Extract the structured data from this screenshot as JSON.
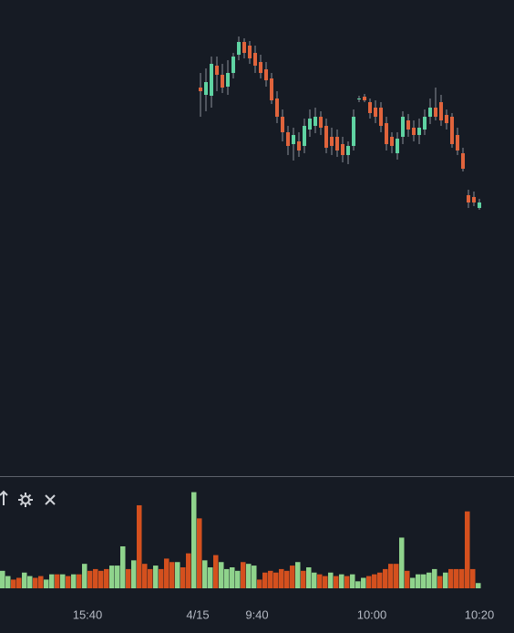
{
  "chart_data": [
    {
      "type": "candlestick",
      "up_color": "#5fd3a2",
      "down_color": "#e0643c",
      "ylim": [
        0,
        522
      ],
      "open": [
        426,
        418,
        417,
        450,
        440,
        427,
        442,
        462,
        476,
        472,
        464,
        454,
        446,
        436,
        414,
        394,
        377,
        364,
        367,
        362,
        380,
        384,
        394,
        384,
        372,
        372,
        364,
        352,
        362,
        414,
        416,
        410,
        404,
        404,
        387,
        372,
        354,
        372,
        390,
        382,
        374,
        380,
        394,
        404,
        410,
        396,
        394,
        374,
        354,
        308,
        306,
        294
      ],
      "high": [
        442,
        447,
        460,
        460,
        452,
        456,
        464,
        482,
        480,
        477,
        472,
        462,
        454,
        442,
        422,
        402,
        384,
        382,
        377,
        392,
        402,
        404,
        400,
        392,
        382,
        380,
        372,
        367,
        402,
        417,
        419,
        414,
        412,
        410,
        394,
        377,
        377,
        400,
        397,
        390,
        392,
        402,
        414,
        426,
        418,
        402,
        398,
        382,
        360,
        314,
        312,
        304
      ],
      "low": [
        394,
        400,
        404,
        422,
        420,
        418,
        436,
        456,
        458,
        452,
        442,
        436,
        427,
        408,
        387,
        367,
        352,
        346,
        350,
        354,
        372,
        376,
        374,
        354,
        352,
        350,
        344,
        342,
        357,
        410,
        410,
        392,
        387,
        377,
        357,
        354,
        347,
        364,
        372,
        367,
        364,
        374,
        386,
        390,
        384,
        380,
        360,
        352,
        334,
        294,
        296,
        292
      ],
      "close": [
        422,
        432,
        452,
        440,
        426,
        442,
        460,
        476,
        464,
        458,
        450,
        442,
        434,
        412,
        394,
        377,
        362,
        374,
        357,
        384,
        392,
        394,
        382,
        360,
        362,
        357,
        352,
        362,
        394,
        414,
        412,
        398,
        394,
        384,
        364,
        362,
        370,
        394,
        380,
        374,
        382,
        394,
        404,
        394,
        390,
        387,
        364,
        357,
        337,
        300,
        300,
        300
      ]
    },
    {
      "type": "bar",
      "ylim": [
        0,
        120
      ],
      "values": [
        20,
        14,
        10,
        12,
        18,
        14,
        12,
        14,
        10,
        16,
        16,
        16,
        14,
        16,
        16,
        28,
        20,
        22,
        20,
        22,
        26,
        26,
        48,
        22,
        32,
        95,
        28,
        22,
        26,
        22,
        34,
        30,
        30,
        24,
        40,
        110,
        80,
        32,
        24,
        38,
        30,
        22,
        24,
        20,
        30,
        28,
        26,
        10,
        18,
        20,
        18,
        22,
        20,
        26,
        30,
        20,
        24,
        18,
        16,
        14,
        18,
        14,
        16,
        14,
        16,
        8,
        12,
        14,
        16,
        18,
        22,
        28,
        28,
        58,
        20,
        12,
        16,
        16,
        18,
        22,
        14,
        18,
        22,
        22,
        22,
        88,
        22,
        6
      ],
      "colors": [
        "#8fd38c",
        "#8fd38c",
        "#d4501e",
        "#d4501e",
        "#8fd38c",
        "#8fd38c",
        "#d4501e",
        "#d4501e",
        "#8fd38c",
        "#8fd38c",
        "#d4501e",
        "#8fd38c",
        "#d4501e",
        "#8fd38c",
        "#d4501e",
        "#8fd38c",
        "#d4501e",
        "#d4501e",
        "#d4501e",
        "#d4501e",
        "#8fd38c",
        "#8fd38c",
        "#8fd38c",
        "#d4501e",
        "#8fd38c",
        "#d4501e",
        "#d4501e",
        "#d4501e",
        "#8fd38c",
        "#d4501e",
        "#d4501e",
        "#d4501e",
        "#8fd38c",
        "#d4501e",
        "#d4501e",
        "#8fd38c",
        "#d4501e",
        "#8fd38c",
        "#8fd38c",
        "#d4501e",
        "#8fd38c",
        "#8fd38c",
        "#8fd38c",
        "#8fd38c",
        "#d4501e",
        "#8fd38c",
        "#8fd38c",
        "#d4501e",
        "#d4501e",
        "#d4501e",
        "#d4501e",
        "#d4501e",
        "#d4501e",
        "#d4501e",
        "#8fd38c",
        "#d4501e",
        "#8fd38c",
        "#8fd38c",
        "#d4501e",
        "#d4501e",
        "#8fd38c",
        "#d4501e",
        "#8fd38c",
        "#d4501e",
        "#8fd38c",
        "#8fd38c",
        "#8fd38c",
        "#d4501e",
        "#d4501e",
        "#d4501e",
        "#d4501e",
        "#d4501e",
        "#d4501e",
        "#8fd38c",
        "#d4501e",
        "#8fd38c",
        "#8fd38c",
        "#8fd38c",
        "#8fd38c",
        "#8fd38c",
        "#d4501e",
        "#8fd38c",
        "#d4501e",
        "#d4501e",
        "#d4501e",
        "#d4501e",
        "#d4501e",
        "#8fd38c"
      ],
      "xticks": [
        "15:40",
        "4/15",
        "9:40",
        "10:00",
        "10:20"
      ]
    }
  ]
}
